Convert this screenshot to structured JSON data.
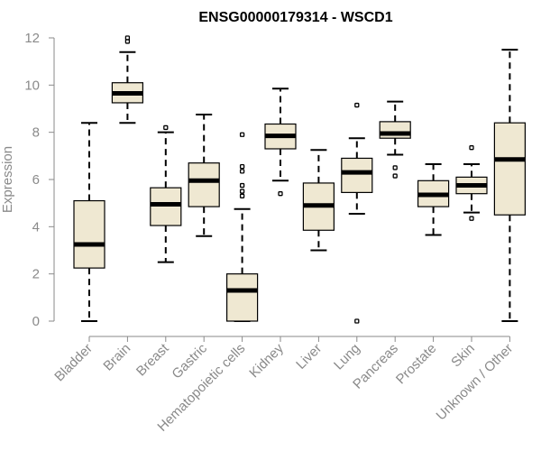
{
  "chart_data": {
    "type": "boxplot",
    "title": "ENSG00000179314 - WSCD1",
    "xlabel": "",
    "ylabel": "Expression",
    "ylim": [
      0,
      12
    ],
    "yticks": [
      0,
      2,
      4,
      6,
      8,
      10,
      12
    ],
    "box_color": "#efe8d2",
    "categories": [
      "Bladder",
      "Brain",
      "Breast",
      "Gastric",
      "Hematopoietic cells",
      "Kidney",
      "Liver",
      "Lung",
      "Pancreas",
      "Prostate",
      "Skin",
      "Unknown / Other"
    ],
    "boxes": [
      {
        "name": "Bladder",
        "min": 0.0,
        "q1": 2.25,
        "median": 3.25,
        "q3": 5.1,
        "max": 8.4,
        "outliers": []
      },
      {
        "name": "Brain",
        "min": 8.4,
        "q1": 9.25,
        "median": 9.65,
        "q3": 10.1,
        "max": 11.4,
        "outliers": [
          11.85,
          12.0
        ]
      },
      {
        "name": "Breast",
        "min": 2.5,
        "q1": 4.05,
        "median": 4.95,
        "q3": 5.65,
        "max": 8.0,
        "outliers": [
          8.2
        ]
      },
      {
        "name": "Gastric",
        "min": 3.6,
        "q1": 4.85,
        "median": 5.95,
        "q3": 6.7,
        "max": 8.75,
        "outliers": []
      },
      {
        "name": "Hematopoietic cells",
        "min": 0.0,
        "q1": 0.0,
        "median": 1.3,
        "q3": 2.0,
        "max": 4.75,
        "outliers": [
          5.3,
          5.5,
          5.75,
          6.35,
          6.55,
          7.9
        ]
      },
      {
        "name": "Kidney",
        "min": 5.95,
        "q1": 7.3,
        "median": 7.85,
        "q3": 8.35,
        "max": 9.85,
        "outliers": [
          5.4
        ]
      },
      {
        "name": "Liver",
        "min": 3.0,
        "q1": 3.85,
        "median": 4.9,
        "q3": 5.85,
        "max": 7.25,
        "outliers": []
      },
      {
        "name": "Lung",
        "min": 4.55,
        "q1": 5.45,
        "median": 6.3,
        "q3": 6.9,
        "max": 7.75,
        "outliers": [
          9.15,
          0.0
        ]
      },
      {
        "name": "Pancreas",
        "min": 7.05,
        "q1": 7.75,
        "median": 7.95,
        "q3": 8.45,
        "max": 9.3,
        "outliers": [
          6.5,
          6.15
        ]
      },
      {
        "name": "Prostate",
        "min": 3.65,
        "q1": 4.85,
        "median": 5.35,
        "q3": 5.95,
        "max": 6.65,
        "outliers": []
      },
      {
        "name": "Skin",
        "min": 4.6,
        "q1": 5.4,
        "median": 5.75,
        "q3": 6.1,
        "max": 6.65,
        "outliers": [
          7.35,
          4.35
        ]
      },
      {
        "name": "Unknown / Other",
        "min": 0.0,
        "q1": 4.5,
        "median": 6.85,
        "q3": 8.4,
        "max": 11.5,
        "outliers": []
      }
    ]
  }
}
